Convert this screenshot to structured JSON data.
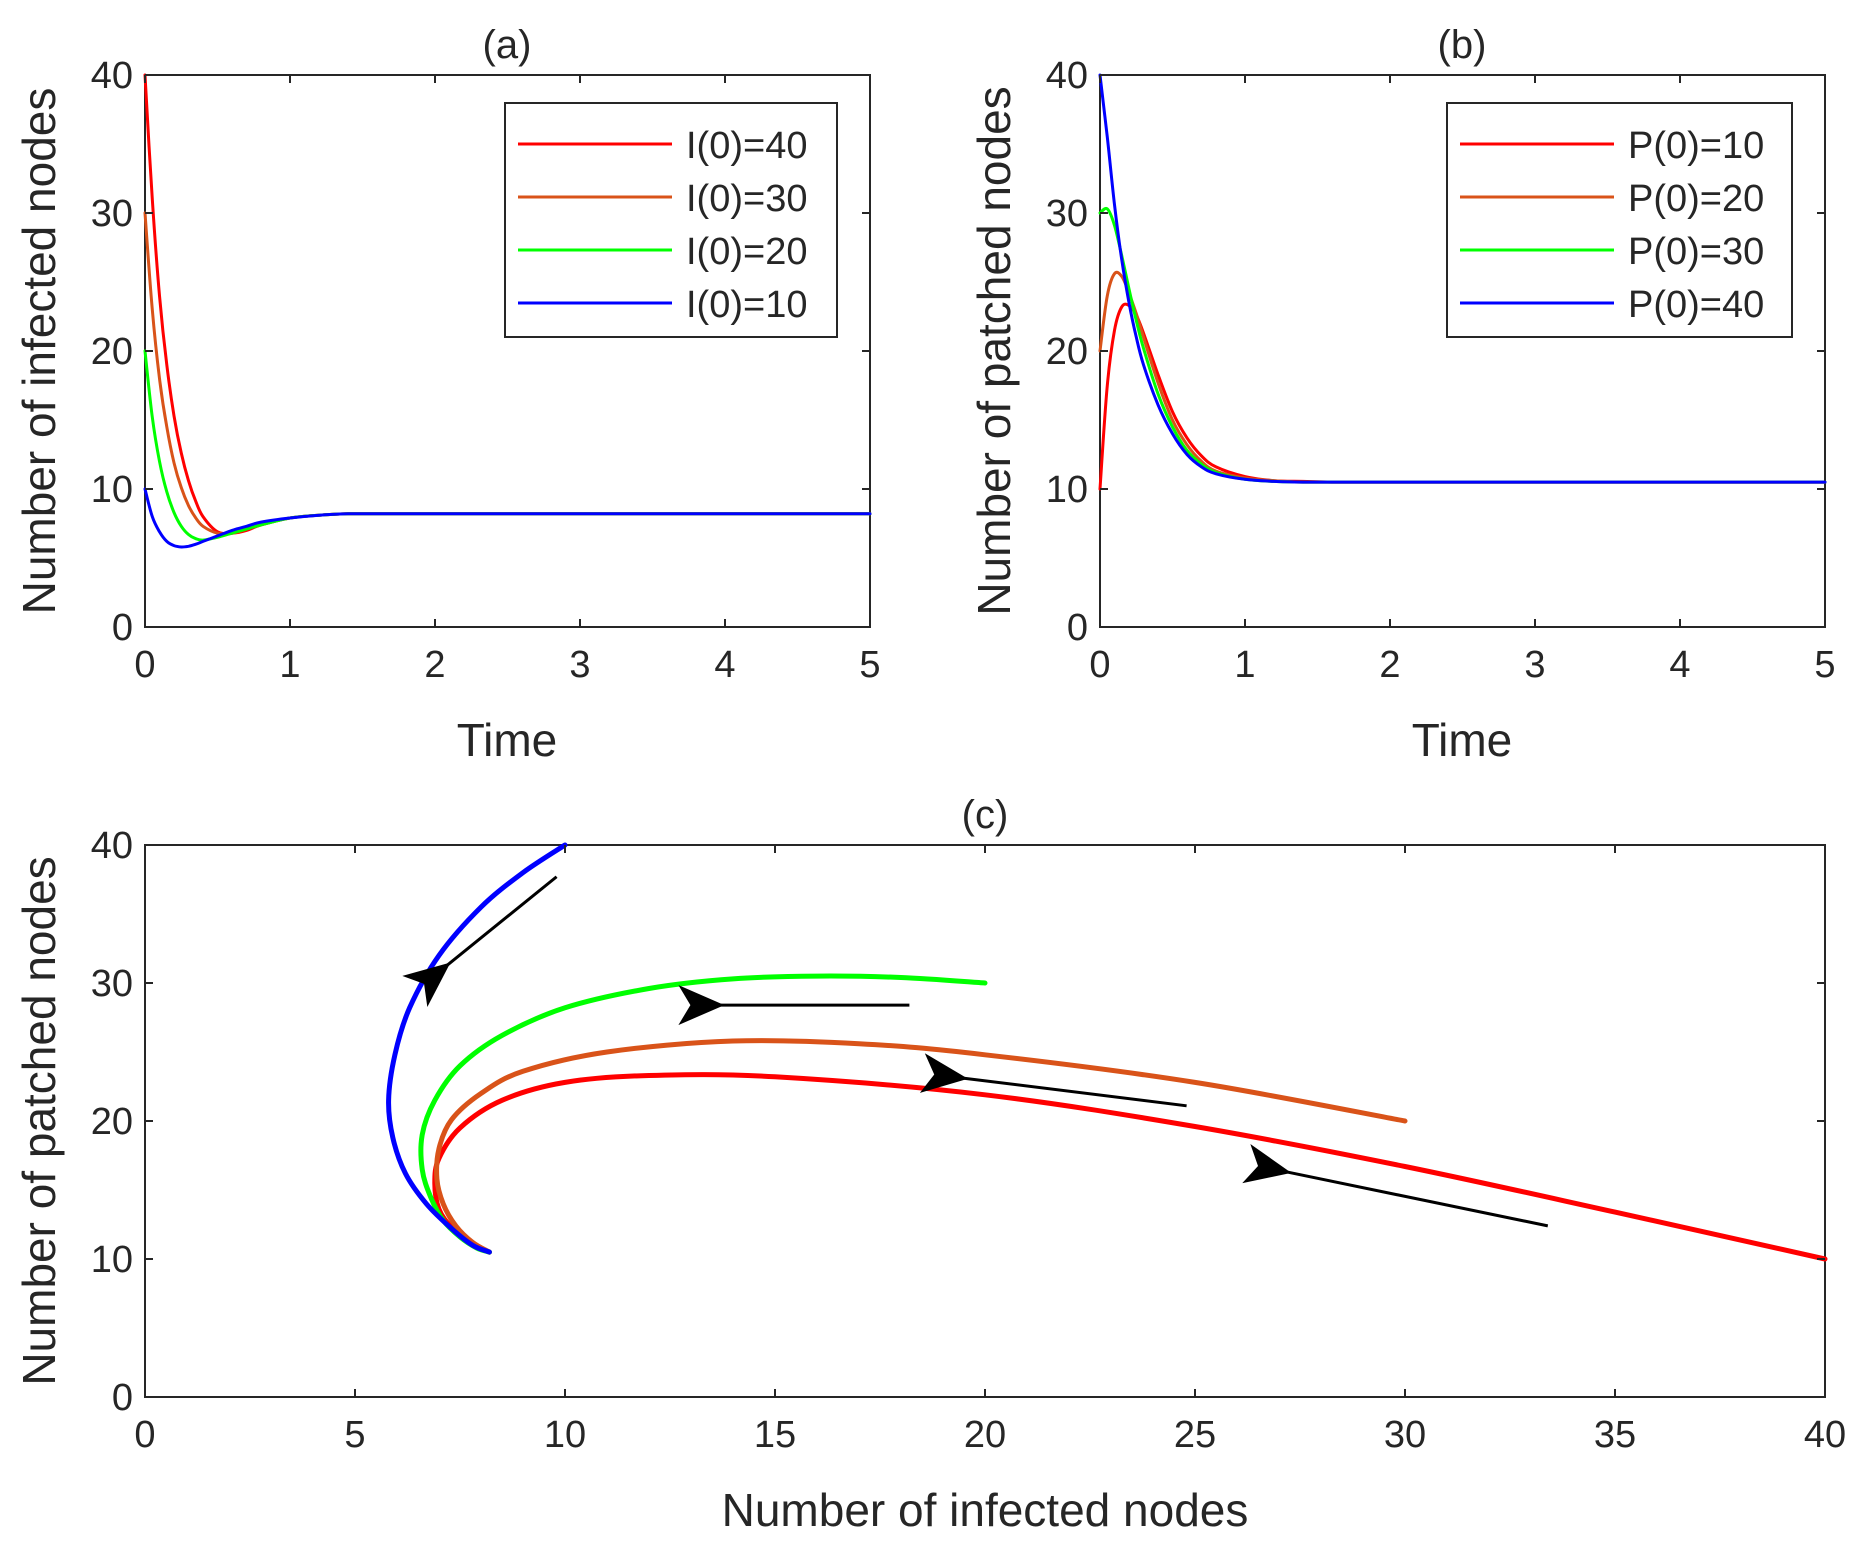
{
  "chart_data": [
    {
      "type": "line",
      "title": "(a)",
      "xlabel": "Time",
      "ylabel": "Number of infected nodes",
      "xlim": [
        0,
        5
      ],
      "ylim": [
        0,
        40
      ],
      "xticks": [
        0,
        1,
        2,
        3,
        4,
        5
      ],
      "yticks": [
        0,
        10,
        20,
        30,
        40
      ],
      "grid": false,
      "legend_position": "top-right",
      "series": [
        {
          "name": "I(0)=40",
          "color": "#ff0000",
          "x": [
            0,
            0.05,
            0.1,
            0.15,
            0.2,
            0.25,
            0.3,
            0.35,
            0.4,
            0.5,
            0.6,
            0.7,
            0.8,
            1.0,
            1.2,
            1.4,
            1.6,
            2.0,
            3.0,
            4.0,
            5.0
          ],
          "y": [
            40,
            31,
            24,
            19,
            15.3,
            12.6,
            10.6,
            9.1,
            8.0,
            6.9,
            6.8,
            7.0,
            7.4,
            7.9,
            8.1,
            8.2,
            8.2,
            8.2,
            8.2,
            8.2,
            8.2
          ]
        },
        {
          "name": "I(0)=30",
          "color": "#d95319",
          "x": [
            0,
            0.05,
            0.1,
            0.15,
            0.2,
            0.25,
            0.3,
            0.35,
            0.4,
            0.5,
            0.6,
            0.7,
            0.8,
            1.0,
            1.2,
            1.4,
            1.6,
            2.0,
            3.0,
            4.0,
            5.0
          ],
          "y": [
            30,
            23,
            18,
            14.5,
            11.9,
            10.1,
            8.8,
            7.9,
            7.3,
            6.8,
            6.8,
            7.1,
            7.4,
            7.9,
            8.1,
            8.2,
            8.2,
            8.2,
            8.2,
            8.2,
            8.2
          ]
        },
        {
          "name": "I(0)=20",
          "color": "#00ff00",
          "x": [
            0,
            0.05,
            0.1,
            0.15,
            0.2,
            0.25,
            0.3,
            0.35,
            0.4,
            0.5,
            0.6,
            0.7,
            0.8,
            1.0,
            1.2,
            1.4,
            1.6,
            2.0,
            3.0,
            4.0,
            5.0
          ],
          "y": [
            20,
            15.2,
            12,
            9.8,
            8.3,
            7.3,
            6.7,
            6.4,
            6.3,
            6.5,
            6.8,
            7.1,
            7.4,
            7.9,
            8.1,
            8.2,
            8.2,
            8.2,
            8.2,
            8.2,
            8.2
          ]
        },
        {
          "name": "I(0)=10",
          "color": "#0000ff",
          "x": [
            0,
            0.05,
            0.1,
            0.15,
            0.2,
            0.25,
            0.3,
            0.35,
            0.4,
            0.5,
            0.6,
            0.7,
            0.8,
            1.0,
            1.2,
            1.4,
            1.6,
            2.0,
            3.0,
            4.0,
            5.0
          ],
          "y": [
            10,
            8.0,
            6.9,
            6.2,
            5.9,
            5.8,
            5.85,
            6.0,
            6.2,
            6.6,
            7.0,
            7.3,
            7.6,
            7.9,
            8.1,
            8.2,
            8.2,
            8.2,
            8.2,
            8.2,
            8.2
          ]
        }
      ]
    },
    {
      "type": "line",
      "title": "(b)",
      "xlabel": "Time",
      "ylabel": "Number of patched nodes",
      "xlim": [
        0,
        5
      ],
      "ylim": [
        0,
        40
      ],
      "xticks": [
        0,
        1,
        2,
        3,
        4,
        5
      ],
      "yticks": [
        0,
        10,
        20,
        30,
        40
      ],
      "grid": false,
      "legend_position": "top-right",
      "series": [
        {
          "name": "P(0)=10",
          "color": "#ff0000",
          "x": [
            0,
            0.05,
            0.1,
            0.15,
            0.2,
            0.25,
            0.3,
            0.4,
            0.5,
            0.6,
            0.7,
            0.8,
            1.0,
            1.2,
            1.4,
            1.6,
            2.0,
            3.0,
            4.0,
            5.0
          ],
          "y": [
            10,
            17.5,
            21.5,
            23.2,
            23.3,
            22.6,
            21.3,
            18.3,
            15.6,
            13.7,
            12.4,
            11.6,
            10.9,
            10.6,
            10.55,
            10.5,
            10.5,
            10.5,
            10.5,
            10.5
          ]
        },
        {
          "name": "P(0)=20",
          "color": "#d95319",
          "x": [
            0,
            0.05,
            0.1,
            0.15,
            0.2,
            0.25,
            0.3,
            0.4,
            0.5,
            0.6,
            0.7,
            0.8,
            1.0,
            1.2,
            1.4,
            1.6,
            2.0,
            3.0,
            4.0,
            5.0
          ],
          "y": [
            20,
            24,
            25.6,
            25.4,
            24.2,
            22.7,
            21.0,
            17.7,
            15.0,
            13.2,
            12.0,
            11.3,
            10.8,
            10.6,
            10.5,
            10.5,
            10.5,
            10.5,
            10.5,
            10.5
          ]
        },
        {
          "name": "P(0)=30",
          "color": "#00ff00",
          "x": [
            0,
            0.05,
            0.1,
            0.15,
            0.2,
            0.25,
            0.3,
            0.4,
            0.5,
            0.6,
            0.7,
            0.8,
            1.0,
            1.2,
            1.4,
            1.6,
            2.0,
            3.0,
            4.0,
            5.0
          ],
          "y": [
            30,
            30.3,
            29.1,
            26.9,
            24.5,
            22.2,
            20.2,
            16.9,
            14.5,
            12.8,
            11.8,
            11.2,
            10.7,
            10.55,
            10.5,
            10.5,
            10.5,
            10.5,
            10.5,
            10.5
          ]
        },
        {
          "name": "P(0)=40",
          "color": "#0000ff",
          "x": [
            0,
            0.05,
            0.1,
            0.15,
            0.2,
            0.25,
            0.3,
            0.4,
            0.5,
            0.6,
            0.7,
            0.8,
            1.0,
            1.2,
            1.4,
            1.6,
            2.0,
            3.0,
            4.0,
            5.0
          ],
          "y": [
            40,
            35.5,
            30.6,
            26.6,
            23.5,
            21.0,
            19.0,
            16.1,
            14.0,
            12.5,
            11.6,
            11.1,
            10.7,
            10.55,
            10.5,
            10.5,
            10.5,
            10.5,
            10.5,
            10.5
          ]
        }
      ]
    },
    {
      "type": "line",
      "title": "(c)",
      "xlabel": "Number of infected nodes",
      "ylabel": "Number of patched nodes",
      "xlim": [
        0,
        40
      ],
      "ylim": [
        0,
        40
      ],
      "xticks": [
        0,
        5,
        10,
        15,
        20,
        25,
        30,
        35,
        40
      ],
      "yticks": [
        0,
        10,
        20,
        30,
        40
      ],
      "grid": false,
      "series": [
        {
          "color": "#ff0000",
          "x": [
            40,
            35,
            30,
            25,
            20,
            15,
            12,
            10,
            8.5,
            7.5,
            7.0,
            6.9,
            7.0,
            7.3,
            7.7,
            8.0,
            8.2
          ],
          "y": [
            10,
            13.4,
            16.7,
            19.6,
            21.9,
            23.2,
            23.3,
            22.8,
            21.5,
            19.5,
            17.3,
            15.5,
            13.6,
            12.3,
            11.3,
            10.8,
            10.5
          ]
        },
        {
          "color": "#d95319",
          "x": [
            30,
            25,
            20,
            17,
            14,
            11,
            9,
            8,
            7.3,
            7.0,
            6.95,
            7.1,
            7.4,
            7.8,
            8.2
          ],
          "y": [
            20,
            22.8,
            24.8,
            25.6,
            25.8,
            25.0,
            23.6,
            22.0,
            20.1,
            18.0,
            15.8,
            14.0,
            12.4,
            11.2,
            10.5
          ]
        },
        {
          "color": "#00ff00",
          "x": [
            20,
            18,
            16,
            14,
            12,
            10,
            8.5,
            7.5,
            6.9,
            6.6,
            6.6,
            6.8,
            7.1,
            7.5,
            7.9,
            8.2
          ],
          "y": [
            30,
            30.4,
            30.5,
            30.3,
            29.6,
            28.2,
            26.2,
            24.0,
            21.5,
            19.0,
            16.5,
            14.5,
            12.8,
            11.6,
            10.8,
            10.5
          ]
        },
        {
          "color": "#0000ff",
          "x": [
            10,
            9.0,
            8.0,
            7.0,
            6.3,
            5.95,
            5.8,
            5.9,
            6.2,
            6.7,
            7.3,
            7.8,
            8.2
          ],
          "y": [
            40,
            38.0,
            35.5,
            32.0,
            28.2,
            24.8,
            21.5,
            18.8,
            16.2,
            14.0,
            12.2,
            11.0,
            10.5
          ]
        }
      ],
      "annotations": [
        {
          "type": "arrow",
          "from": [
            9.8,
            37.7
          ],
          "to": [
            7.2,
            31.3
          ]
        },
        {
          "type": "arrow",
          "from": [
            18.2,
            28.4
          ],
          "to": [
            13.7,
            28.4
          ]
        },
        {
          "type": "arrow",
          "from": [
            24.8,
            21.1
          ],
          "to": [
            19.5,
            23.1
          ]
        },
        {
          "type": "arrow",
          "from": [
            33.4,
            12.4
          ],
          "to": [
            27.2,
            16.3
          ]
        }
      ]
    }
  ]
}
